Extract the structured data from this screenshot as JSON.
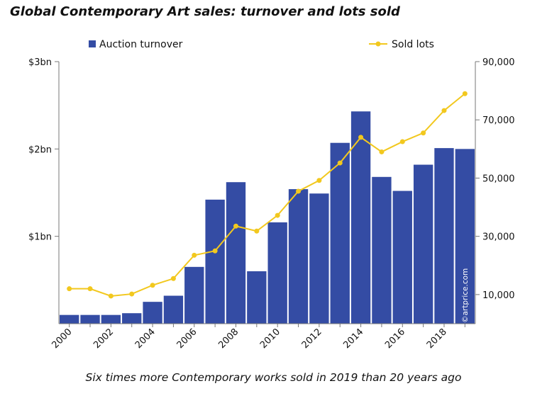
{
  "header": {
    "title": "Global Contemporary Art sales: turnover and lots sold"
  },
  "footer": {
    "caption": "Six times more Contemporary works sold in 2019 than 20 years ago"
  },
  "credit": "©artprice.com",
  "chart_data": {
    "type": "bar",
    "categories": [
      "2000",
      "2001",
      "2002",
      "2003",
      "2004",
      "2005",
      "2006",
      "2007",
      "2008",
      "2009",
      "2010",
      "2011",
      "2012",
      "2013",
      "2014",
      "2015",
      "2016",
      "2017",
      "2018",
      "2019"
    ],
    "x_tick_labels": [
      "2000",
      "2002",
      "2004",
      "2006",
      "2008",
      "2010",
      "2012",
      "2014",
      "2016",
      "2018"
    ],
    "series": [
      {
        "name": "Auction turnover",
        "type": "bar",
        "axis": "left",
        "color": "#344ca4",
        "values": [
          0.1,
          0.1,
          0.1,
          0.12,
          0.25,
          0.32,
          0.65,
          1.42,
          1.62,
          0.6,
          1.16,
          1.54,
          1.49,
          2.07,
          2.43,
          1.68,
          1.52,
          1.82,
          2.01,
          2.0
        ]
      },
      {
        "name": "Sold lots",
        "type": "line",
        "axis": "right",
        "color": "#f2c81e",
        "values": [
          12000,
          12000,
          9500,
          10200,
          13200,
          15500,
          23500,
          25000,
          33500,
          31800,
          37200,
          45500,
          49200,
          55200,
          64000,
          59000,
          62500,
          65500,
          73200,
          79000
        ]
      }
    ],
    "y_left": {
      "ticks": [
        "$1bn",
        "$2bn",
        "$3bn"
      ],
      "tick_values": [
        1,
        2,
        3
      ],
      "range": [
        0,
        3
      ]
    },
    "y_right": {
      "ticks": [
        "10,000",
        "30,000",
        "50,000",
        "70,000",
        "90,000"
      ],
      "tick_values": [
        10000,
        30000,
        50000,
        70000,
        90000
      ],
      "range": [
        0,
        90000
      ]
    },
    "legend": {
      "placement": "top"
    },
    "grid": false
  }
}
